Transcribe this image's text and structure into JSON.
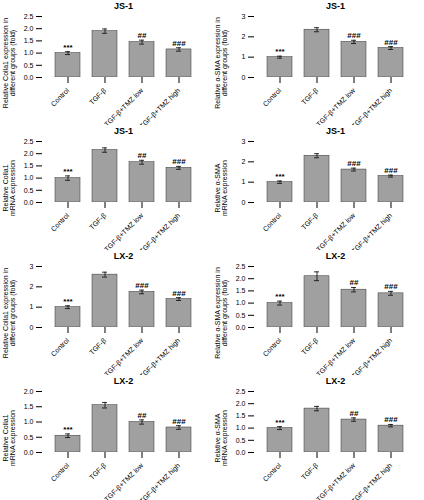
{
  "chart_data": [
    {
      "type": "bar",
      "title": "JS-1",
      "ylabel": "Relative Colla1 expression in\ndifferent groups (fold)",
      "categories": [
        "Control",
        "TGF-β",
        "TGF-β+TMZ low",
        "TGF-β+TMZ high"
      ],
      "values": [
        1.0,
        1.9,
        1.45,
        1.15
      ],
      "errors": [
        0.06,
        0.09,
        0.08,
        0.07
      ],
      "annotations": [
        "***",
        null,
        "##",
        "###"
      ],
      "color": "#a0a0a0",
      "ylim": [
        0,
        2.5
      ],
      "yticks": [
        {
          "value": 0,
          "label": "0.0"
        },
        0.5,
        {
          "value": 1.0,
          "label": "1.0"
        },
        1.5,
        {
          "value": 2.0,
          "label": "2.0"
        },
        2.5
      ]
    },
    {
      "type": "bar",
      "title": "JS-1",
      "ylabel": "Relative α-SMA expression in\ndifferent groups (fold)",
      "categories": [
        "Control",
        "TGF-β",
        "TGF-β+TMZ low",
        "TGF-β+TMZ high"
      ],
      "values": [
        1.0,
        2.35,
        1.75,
        1.45
      ],
      "errors": [
        0.05,
        0.1,
        0.08,
        0.07
      ],
      "annotations": [
        "***",
        null,
        "###",
        "###"
      ],
      "color": "#a0a0a0",
      "ylim": [
        0,
        3.0
      ],
      "yticks": [
        0,
        1,
        2,
        3
      ]
    },
    {
      "type": "bar",
      "title": "JS-1",
      "ylabel": "Relative Colla1\nmRNA expression",
      "categories": [
        "Control",
        "TGF-β",
        "TGF-β+TMZ low",
        "TGF-β+TMZ high"
      ],
      "values": [
        1.0,
        2.15,
        1.65,
        1.42
      ],
      "errors": [
        0.09,
        0.09,
        0.08,
        0.06
      ],
      "annotations": [
        "***",
        null,
        "##",
        "###"
      ],
      "color": "#a0a0a0",
      "ylim": [
        0,
        2.5
      ],
      "yticks": [
        {
          "value": 0,
          "label": "0.0"
        },
        0.5,
        {
          "value": 1.0,
          "label": "1.0"
        },
        1.5,
        {
          "value": 2.0,
          "label": "2.0"
        },
        2.5
      ]
    },
    {
      "type": "bar",
      "title": "JS-1",
      "ylabel": "Relative α-SMA\nmRNA expression",
      "categories": [
        "Control",
        "TGF-β",
        "TGF-β+TMZ low",
        "TGF-β+TMZ high"
      ],
      "values": [
        1.0,
        2.3,
        1.62,
        1.3
      ],
      "errors": [
        0.06,
        0.1,
        0.07,
        0.05
      ],
      "annotations": [
        "***",
        null,
        "###",
        "###"
      ],
      "color": "#a0a0a0",
      "ylim": [
        0,
        3.0
      ],
      "yticks": [
        0,
        1,
        2,
        3
      ]
    },
    {
      "type": "bar",
      "title": "LX-2",
      "ylabel": "Relative Colla1 expression in\ndifferent groups (fold)",
      "categories": [
        "Control",
        "TGF-β",
        "TGF-β+TMZ low",
        "TGF-β+TMZ high"
      ],
      "values": [
        1.0,
        2.6,
        1.75,
        1.4
      ],
      "errors": [
        0.07,
        0.12,
        0.09,
        0.07
      ],
      "annotations": [
        "***",
        null,
        "###",
        "###"
      ],
      "color": "#a0a0a0",
      "ylim": [
        0,
        3.0
      ],
      "yticks": [
        0,
        1,
        2,
        3
      ]
    },
    {
      "type": "bar",
      "title": "LX-2",
      "ylabel": "Relative α-SMA expression in\ndifferent groups (fold)",
      "categories": [
        "Control",
        "TGF-β",
        "TGF-β+TMZ low",
        "TGF-β+TMZ high"
      ],
      "values": [
        1.0,
        2.1,
        1.55,
        1.4
      ],
      "errors": [
        0.08,
        0.18,
        0.09,
        0.08
      ],
      "annotations": [
        "***",
        null,
        "##",
        "###"
      ],
      "color": "#a0a0a0",
      "ylim": [
        0,
        2.5
      ],
      "yticks": [
        {
          "value": 0,
          "label": "0.0"
        },
        0.5,
        {
          "value": 1.0,
          "label": "1.0"
        },
        1.5,
        {
          "value": 2.0,
          "label": "2.0"
        },
        2.5
      ]
    },
    {
      "type": "bar",
      "title": "LX-2",
      "ylabel": "Relative Colla1\nmRNA expression",
      "categories": [
        "Control",
        "TGF-β",
        "TGF-β+TMZ low",
        "TGF-β+TMZ high"
      ],
      "values": [
        0.55,
        1.55,
        1.0,
        0.82
      ],
      "errors": [
        0.06,
        0.09,
        0.07,
        0.06
      ],
      "annotations": [
        "***",
        null,
        "##",
        "###"
      ],
      "color": "#a0a0a0",
      "ylim": [
        0,
        2.0
      ],
      "yticks": [
        {
          "value": 0,
          "label": "0.0"
        },
        0.5,
        {
          "value": 1.0,
          "label": "1.0"
        },
        1.5,
        {
          "value": 2.0,
          "label": "2.0"
        }
      ]
    },
    {
      "type": "bar",
      "title": "LX-2",
      "ylabel": "Relative α-SMA\nmRNA expression",
      "categories": [
        "Control",
        "TGF-β",
        "TGF-β+TMZ low",
        "TGF-β+TMZ high"
      ],
      "values": [
        1.0,
        1.8,
        1.35,
        1.1
      ],
      "errors": [
        0.06,
        0.09,
        0.07,
        0.05
      ],
      "annotations": [
        "***",
        null,
        "##",
        "###"
      ],
      "color": "#a0a0a0",
      "ylim": [
        0,
        2.5
      ],
      "yticks": [
        {
          "value": 0,
          "label": "0.0"
        },
        0.5,
        {
          "value": 1.0,
          "label": "1.0"
        },
        1.5,
        {
          "value": 2.0,
          "label": "2.0"
        },
        2.5
      ]
    }
  ]
}
